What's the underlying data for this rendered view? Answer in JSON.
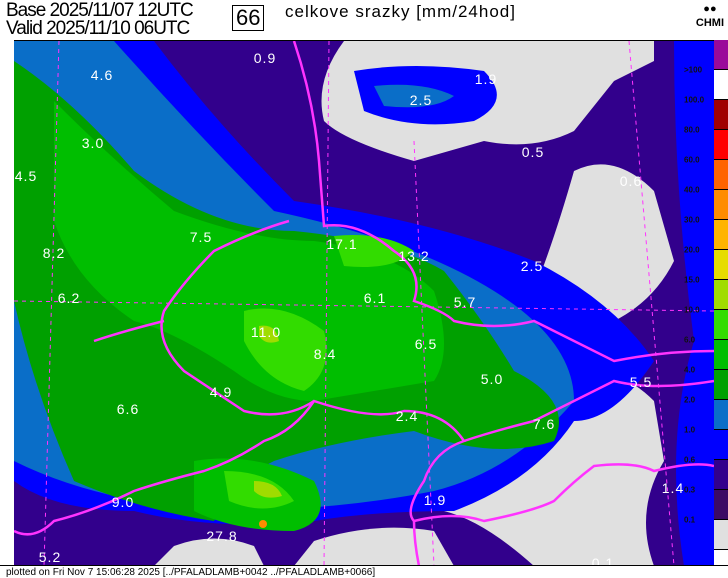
{
  "header": {
    "base_label": "Base 2025/11/07 12UTC",
    "valid_label": "Valid 2025/11/10 06UTC",
    "forecast_hour": "66",
    "title": "celkove srazky [mm/24hod]",
    "logo_text": "CHMI"
  },
  "map": {
    "values": [
      "0.9",
      "4.6",
      "1.9",
      "2.5",
      "3.0",
      "0.5",
      "0.6",
      "4.5",
      "7.5",
      "17.1",
      "13.2",
      "2.5",
      "8.2",
      "6.1",
      "5.7",
      "6.2",
      "11.0",
      "6.5",
      "8.4",
      "5.5",
      "5.0",
      "4.9",
      "6.6",
      "2.4",
      "7.6",
      "9.0",
      "1.9",
      "1.4",
      "27.8",
      "5.2",
      "0.1"
    ],
    "border_color": "#ff33ff",
    "no_precip_color": "#e0e0e0"
  },
  "colorbar": {
    "labels": [
      ">100",
      "100.0",
      "80.0",
      "60.0",
      "40.0",
      "30.0",
      "20.0",
      "15.0",
      "10.0",
      "6.0",
      "4.0",
      "2.0",
      "1.0",
      "0.6",
      "0.3",
      "0.1"
    ],
    "colors": [
      "#9a0a9a",
      "#ffffff",
      "#a00000",
      "#ff0000",
      "#ff6400",
      "#ff8c00",
      "#ffb400",
      "#e6dc00",
      "#a0dc00",
      "#32dc00",
      "#00be00",
      "#00a000",
      "#0a6ec8",
      "#0000ff",
      "#32008c",
      "#3c0a64",
      "#e0e0e0"
    ]
  },
  "footer": {
    "text": "plotted on Fri Nov  7 15:06:28 2025 [../PFALADLAMB+0042 ../PFALADLAMB+0066]"
  }
}
